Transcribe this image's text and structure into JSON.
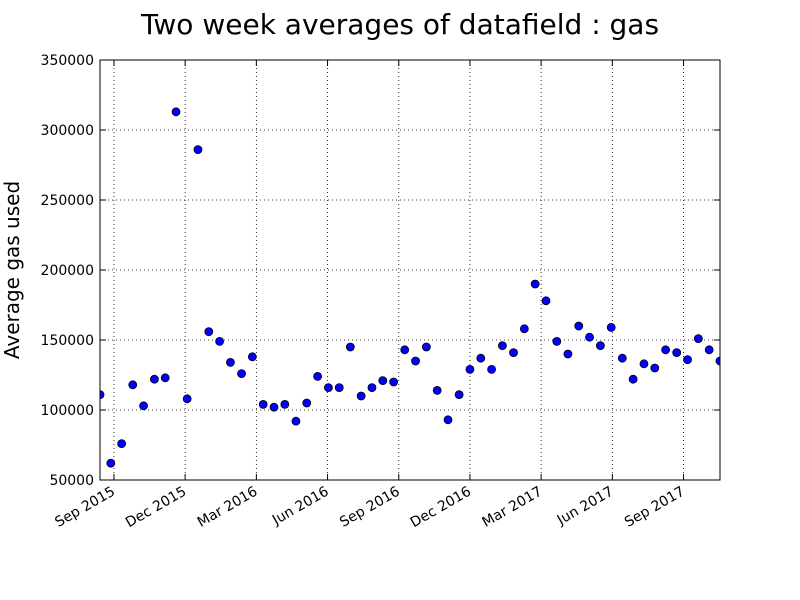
{
  "chart_data": {
    "type": "scatter",
    "title": "Two week averages of datafield : gas",
    "y_label": "Average gas used",
    "x": [
      2015.618,
      2015.656,
      2015.694,
      2015.733,
      2015.771,
      2015.809,
      2015.847,
      2015.885,
      2015.924,
      2015.962,
      2016.0,
      2016.038,
      2016.076,
      2016.115,
      2016.153,
      2016.191,
      2016.229,
      2016.267,
      2016.306,
      2016.344,
      2016.382,
      2016.42,
      2016.458,
      2016.497,
      2016.535,
      2016.573,
      2016.611,
      2016.649,
      2016.688,
      2016.726,
      2016.764,
      2016.802,
      2016.84,
      2016.879,
      2016.917,
      2016.955,
      2016.993,
      2017.031,
      2017.07,
      2017.108,
      2017.146,
      2017.184,
      2017.222,
      2017.261,
      2017.299,
      2017.337,
      2017.375,
      2017.413,
      2017.452,
      2017.49,
      2017.528,
      2017.566,
      2017.604,
      2017.643,
      2017.681,
      2017.719,
      2017.757,
      2017.795
    ],
    "values": [
      111000,
      62000,
      76000,
      118000,
      103000,
      122000,
      123000,
      313000,
      108000,
      286000,
      156000,
      149000,
      134000,
      126000,
      138000,
      104000,
      102000,
      104000,
      92000,
      105000,
      124000,
      116000,
      116000,
      145000,
      110000,
      116000,
      121000,
      120000,
      143000,
      135000,
      145000,
      114000,
      93000,
      111000,
      129000,
      137000,
      129000,
      146000,
      141000,
      158000,
      190000,
      178000,
      149000,
      140000,
      160000,
      152000,
      146000,
      159000,
      137000,
      122000,
      133000,
      130000,
      143000,
      141000,
      136000,
      151000,
      143000,
      135000
    ],
    "color": "#0000ff",
    "xlim": [
      2015.618,
      2017.795
    ],
    "xticks": [
      {
        "value": 2015.667,
        "label": "Sep 2015"
      },
      {
        "value": 2015.917,
        "label": "Dec 2015"
      },
      {
        "value": 2016.167,
        "label": "Mar 2016"
      },
      {
        "value": 2016.417,
        "label": "Jun 2016"
      },
      {
        "value": 2016.667,
        "label": "Sep 2016"
      },
      {
        "value": 2016.917,
        "label": "Dec 2016"
      },
      {
        "value": 2017.167,
        "label": "Mar 2017"
      },
      {
        "value": 2017.417,
        "label": "Jun 2017"
      },
      {
        "value": 2017.667,
        "label": "Sep 2017"
      }
    ],
    "ylim": [
      50000,
      350000
    ],
    "yticks": [
      50000,
      100000,
      150000,
      200000,
      250000,
      300000,
      350000
    ],
    "grid": true
  }
}
